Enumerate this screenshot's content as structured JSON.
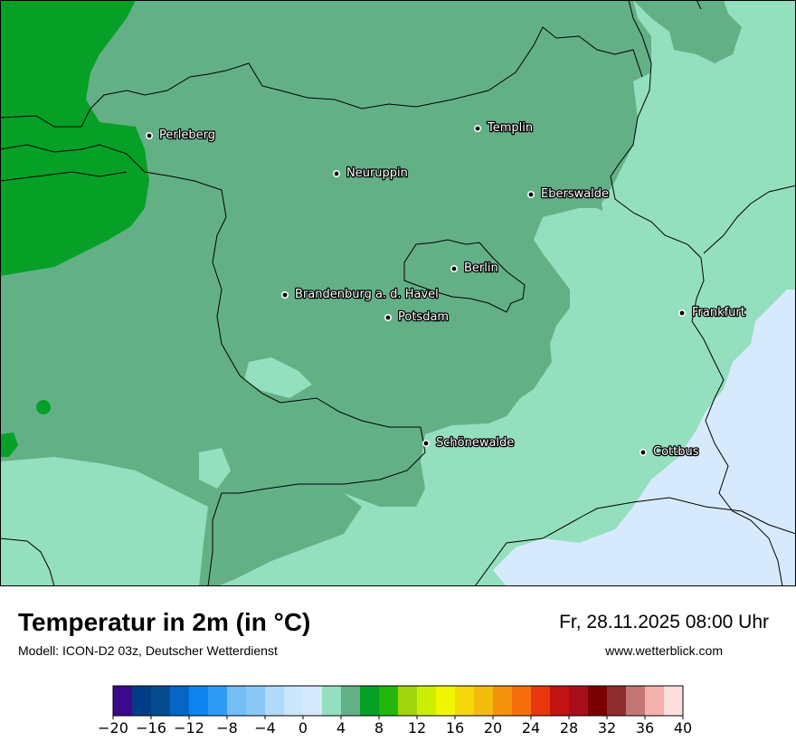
{
  "map": {
    "cities": [
      {
        "name": "Perleberg"
      },
      {
        "name": "Templin"
      },
      {
        "name": "Neuruppin"
      },
      {
        "name": "Eberswalde"
      },
      {
        "name": "Berlin"
      },
      {
        "name": "Brandenburg a. d. Havel"
      },
      {
        "name": "Potsdam"
      },
      {
        "name": "Frankfurt"
      },
      {
        "name": "Schönewalde"
      },
      {
        "name": "Cottbus"
      }
    ],
    "colors": {
      "temp_0_2": "#d7e9fc",
      "temp_2_4": "#94dfbd",
      "temp_4_6": "#63b087",
      "temp_6_8": "#06a027",
      "border": "#000000"
    }
  },
  "header": {
    "title": "Temperatur in 2m (in °C)",
    "model": "Modell: ICON-D2 03z, Deutscher Wetterdienst",
    "datetime": "Fr, 28.11.2025 08:00 Uhr",
    "website": "www.wetterblick.com"
  },
  "legend": {
    "colors": [
      "#3b0a8a",
      "#043d87",
      "#054d8f",
      "#0566c6",
      "#0d84ee",
      "#2d9bf3",
      "#74bdf7",
      "#8ac8f7",
      "#b1d9fa",
      "#cbe5fb",
      "#d7e9fc",
      "#94dfbd",
      "#63b087",
      "#06a027",
      "#21b80b",
      "#a0d60b",
      "#ccee00",
      "#f2f600",
      "#f4d80a",
      "#f4bd0b",
      "#f4930b",
      "#f46f0b",
      "#e8360e",
      "#c21212",
      "#a80f18",
      "#7b0001",
      "#8e2d2d",
      "#c47676",
      "#f3b2ab",
      "#fde0dc"
    ],
    "ticks": [
      "−20",
      "−16",
      "−12",
      "−8",
      "−4",
      "0",
      "4",
      "8",
      "12",
      "16",
      "20",
      "24",
      "28",
      "32",
      "36",
      "40"
    ]
  }
}
